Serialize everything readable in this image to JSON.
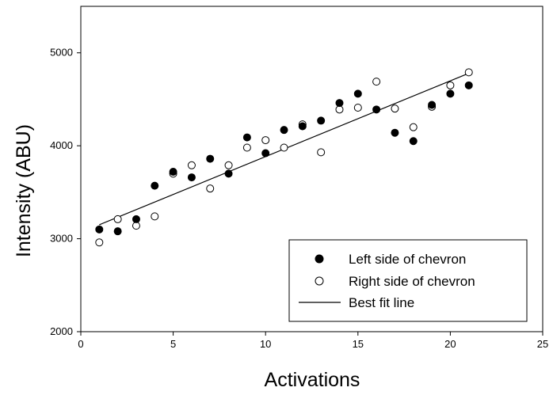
{
  "chart_data": {
    "type": "scatter",
    "title": "",
    "xlabel": "Activations",
    "ylabel": "Intensity (ABU)",
    "xlim": [
      0,
      25
    ],
    "ylim": [
      2000,
      5500
    ],
    "xticks": [
      0,
      5,
      10,
      15,
      20,
      25
    ],
    "yticks": [
      2000,
      3000,
      4000,
      5000
    ],
    "grid": false,
    "legend_position": "bottom-right",
    "series": [
      {
        "name": "Left side of chevron",
        "marker": "filled-circle",
        "color": "#000000",
        "x": [
          1,
          2,
          3,
          4,
          5,
          6,
          7,
          8,
          9,
          10,
          11,
          12,
          13,
          14,
          15,
          16,
          17,
          18,
          19,
          20,
          21
        ],
        "y": [
          3100,
          3080,
          3210,
          3570,
          3720,
          3660,
          3860,
          3700,
          4090,
          3920,
          4170,
          4210,
          4270,
          4460,
          4560,
          4390,
          4140,
          4050,
          4440,
          4560,
          4650
        ]
      },
      {
        "name": "Right side of chevron",
        "marker": "open-circle",
        "color": "#000000",
        "x": [
          1,
          2,
          3,
          4,
          5,
          6,
          7,
          8,
          9,
          10,
          11,
          12,
          13,
          14,
          15,
          16,
          17,
          18,
          19,
          20,
          21
        ],
        "y": [
          2960,
          3210,
          3140,
          3240,
          3700,
          3790,
          3540,
          3790,
          3980,
          4060,
          3980,
          4230,
          3930,
          4390,
          4410,
          4690,
          4400,
          4200,
          4420,
          4650,
          4790
        ]
      },
      {
        "name": "Best fit line",
        "kind": "line",
        "color": "#000000",
        "x": [
          1,
          21
        ],
        "y": [
          3150,
          4780
        ]
      }
    ]
  }
}
